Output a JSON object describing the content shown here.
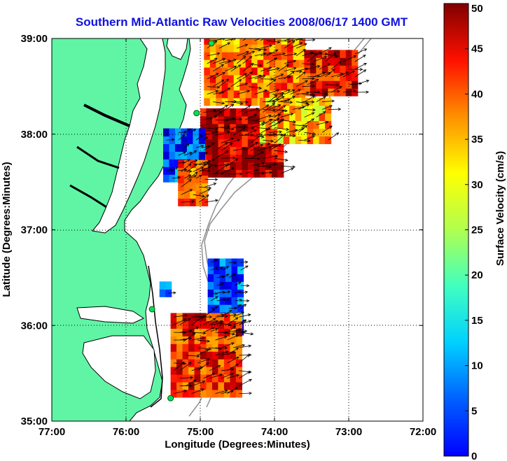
{
  "title": "Southern Mid-Atlantic Raw Velocities 2008/06/17 1400 GMT",
  "x_axis": {
    "label": "Longitude (Degrees:Minutes)",
    "ticks": [
      "77:00",
      "76:00",
      "75:00",
      "74:00",
      "73:00",
      "72:00"
    ],
    "values": [
      -77,
      -76,
      -75,
      -74,
      -73,
      -72
    ]
  },
  "y_axis": {
    "label": "Latitude (Degrees:Minutes)",
    "ticks": [
      "39:00",
      "38:00",
      "37:00",
      "36:00",
      "35:00"
    ],
    "values": [
      39,
      38,
      37,
      36,
      35
    ]
  },
  "colorbar": {
    "label": "Surface Velocity (cm/s)",
    "ticks": [
      "50",
      "45",
      "40",
      "35",
      "30",
      "25",
      "20",
      "15",
      "10",
      "5",
      "0"
    ],
    "range": [
      0,
      50
    ],
    "colormap": "jet"
  },
  "map": {
    "lon_range": [
      -77,
      -72
    ],
    "lat_range": [
      35,
      39
    ],
    "grid": "dotted",
    "land_color": "#5ff5a5",
    "coast_color": "#000000",
    "isobath_color": "#909090",
    "vector_color": "#000000",
    "stations": [
      {
        "lon": -74.85,
        "lat": 38.95
      },
      {
        "lon": -75.05,
        "lat": 38.22
      },
      {
        "lon": -75.65,
        "lat": 36.17
      },
      {
        "lon": -75.4,
        "lat": 35.24
      }
    ],
    "regions": [
      {
        "name": "delaware-bay-patch",
        "lon": [
          -74.95,
          -73.6
        ],
        "lat": [
          38.3,
          38.97
        ],
        "speed": 38
      },
      {
        "name": "offshore-north-patch",
        "lon": [
          -73.6,
          -72.9
        ],
        "lat": [
          38.4,
          38.85
        ],
        "speed": 44
      },
      {
        "name": "mid-shelf-patch",
        "lon": [
          -75.0,
          -73.9
        ],
        "lat": [
          37.55,
          38.25
        ],
        "speed": 47
      },
      {
        "name": "outer-shelf-patch",
        "lon": [
          -74.2,
          -73.3
        ],
        "lat": [
          37.9,
          38.3
        ],
        "speed": 35
      },
      {
        "name": "coastal-slow-patch",
        "lon": [
          -75.5,
          -75.0
        ],
        "lat": [
          37.5,
          38.0
        ],
        "speed": 10
      },
      {
        "name": "south-virginia-patch",
        "lon": [
          -75.3,
          -74.95
        ],
        "lat": [
          37.25,
          37.65
        ],
        "speed": 40
      },
      {
        "name": "cape-hatteras-east-patch",
        "lon": [
          -74.9,
          -74.5
        ],
        "lat": [
          35.9,
          36.65
        ],
        "speed": 10
      },
      {
        "name": "small-offshore-cell",
        "lon": [
          -75.55,
          -75.4
        ],
        "lat": [
          36.3,
          36.45
        ],
        "speed": 10
      },
      {
        "name": "cape-hatteras-south-patch",
        "lon": [
          -75.4,
          -74.5
        ],
        "lat": [
          35.25,
          36.05
        ],
        "speed": 42
      }
    ]
  }
}
